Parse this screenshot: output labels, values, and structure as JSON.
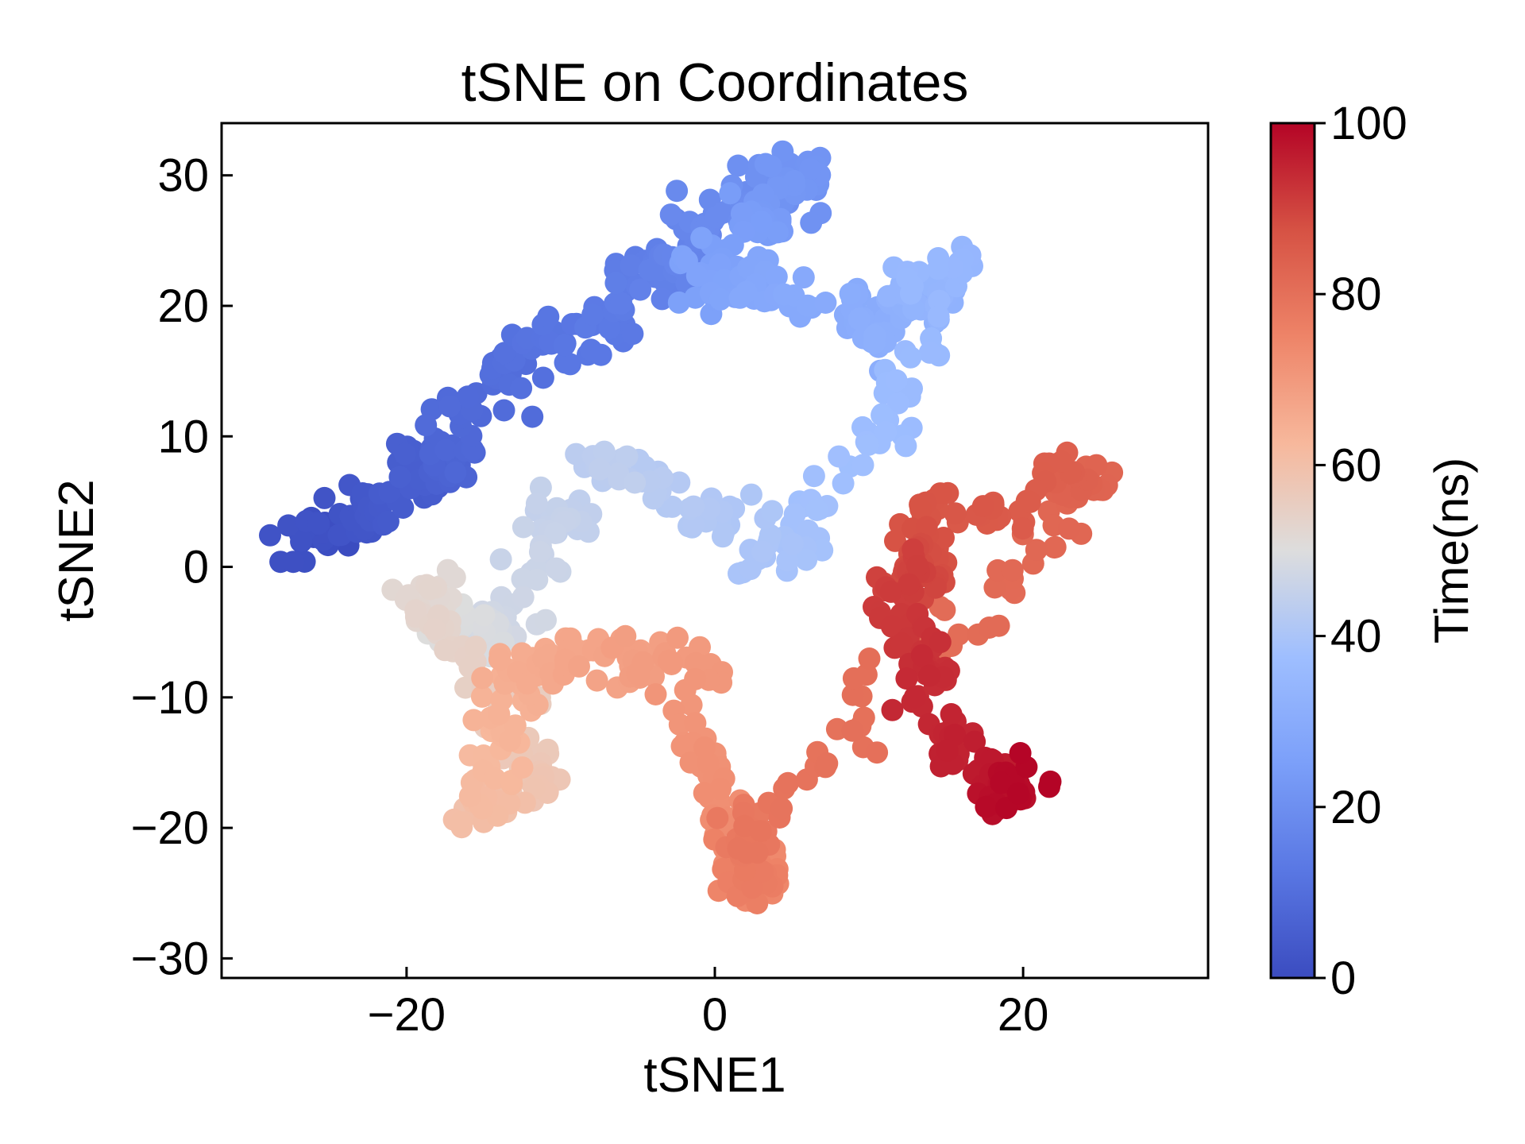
{
  "chart_data": {
    "type": "scatter",
    "title": "tSNE on Coordinates",
    "xlabel": "tSNE1",
    "ylabel": "tSNE2",
    "xlim": [
      -32,
      32
    ],
    "ylim": [
      -31.5,
      34
    ],
    "xticks": [
      -20,
      0,
      20
    ],
    "yticks": [
      -30,
      -20,
      -10,
      0,
      10,
      20,
      30
    ],
    "colorbar": {
      "label": "Time(ns)",
      "range": [
        0,
        100
      ],
      "ticks": [
        0,
        20,
        40,
        60,
        80,
        100
      ],
      "colormap": "coolwarm",
      "low_color": "#3b4cc0",
      "mid_color": "#dddddd",
      "high_color": "#b40426"
    },
    "grid": false,
    "points_per_segment": 55,
    "series": [
      {
        "time_ns": [
          0,
          5,
          10,
          15,
          20,
          25,
          30,
          35,
          40,
          45,
          50,
          55,
          60,
          65,
          70,
          75,
          80,
          85,
          90,
          95,
          100
        ],
        "x": [
          -27,
          -21,
          -15,
          -8,
          0,
          5,
          -1,
          9,
          16,
          5,
          -8,
          -14,
          -20,
          -12,
          -15,
          -13,
          -2,
          2,
          2,
          26,
          14,
          12,
          16,
          20
        ],
        "y": [
          2,
          5,
          13,
          19,
          26,
          30,
          22,
          19,
          23,
          0,
          9,
          -5,
          -2,
          -15,
          -19,
          -7,
          -7,
          -24,
          -21,
          6,
          3,
          -3,
          -15,
          -17
        ]
      }
    ]
  }
}
